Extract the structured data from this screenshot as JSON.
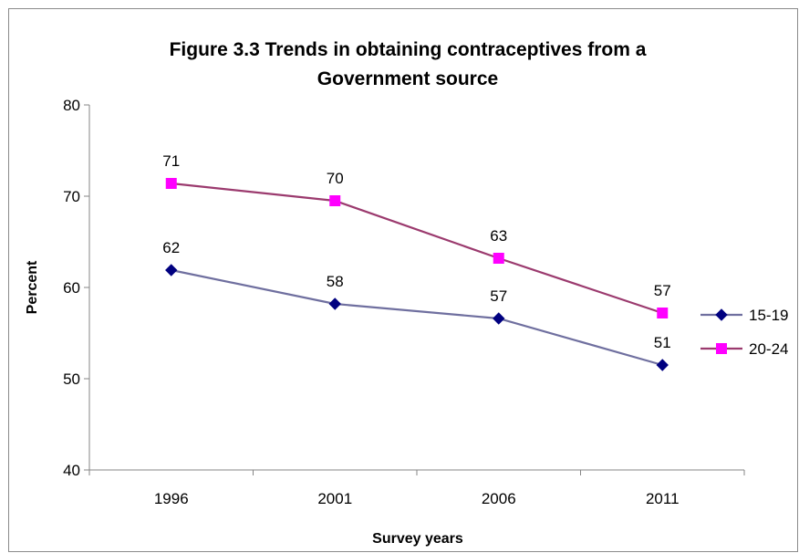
{
  "chart_data": {
    "type": "line",
    "title_lines": [
      "Figure 3.3 Trends in obtaining contraceptives from a",
      "Government source"
    ],
    "xlabel": "Survey years",
    "ylabel": "Percent",
    "categories": [
      "1996",
      "2001",
      "2006",
      "2011"
    ],
    "ylim": [
      40,
      80
    ],
    "yticks": [
      "40",
      "50",
      "60",
      "70",
      "80"
    ],
    "grid": false,
    "legend_position": "right",
    "series": [
      {
        "name": "15-19",
        "values": [
          61.9,
          58.2,
          56.6,
          51.5
        ],
        "labels": [
          "62",
          "58",
          "57",
          "51"
        ],
        "line_color": "#6f6f9f",
        "marker_color": "#000080",
        "marker": "diamond"
      },
      {
        "name": "20-24",
        "values": [
          71.4,
          69.5,
          63.2,
          57.2
        ],
        "labels": [
          "71",
          "70",
          "63",
          "57"
        ],
        "line_color": "#9b3a6e",
        "marker_color": "#ff00ff",
        "marker": "square"
      }
    ]
  }
}
